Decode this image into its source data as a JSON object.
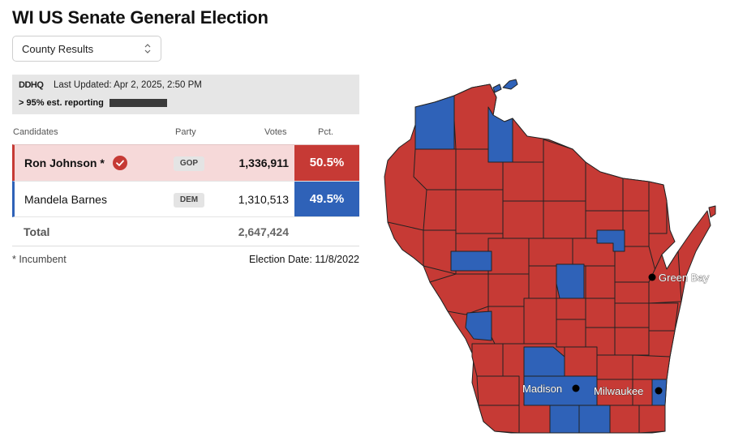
{
  "title": "WI US Senate General Election",
  "view_select": {
    "value": "County Results"
  },
  "banner": {
    "logo": "DDHQ",
    "updated": "Last Updated: Apr 2, 2025, 2:50 PM",
    "reporting": "> 95% est. reporting",
    "reporting_fraction": 0.95
  },
  "table": {
    "headers": {
      "candidates": "Candidates",
      "party": "Party",
      "votes": "Votes",
      "pct": "Pct."
    },
    "rows": [
      {
        "name": "Ron Johnson *",
        "party": "GOP",
        "votes": "1,336,911",
        "pct": "50.5%",
        "winner": true,
        "color": "#c63a35"
      },
      {
        "name": "Mandela Barnes",
        "party": "DEM",
        "votes": "1,310,513",
        "pct": "49.5%",
        "winner": false,
        "color": "#2f62b8"
      }
    ],
    "total_label": "Total",
    "total_votes": "2,647,424"
  },
  "footer": {
    "incumbent_note": "* Incumbent",
    "election_date": "Election Date: 11/8/2022"
  },
  "map": {
    "colors": {
      "gop": "#c63a35",
      "dem": "#2f62b8"
    },
    "cities": [
      {
        "name": "Green Bay"
      },
      {
        "name": "Madison"
      },
      {
        "name": "Milwaukee"
      }
    ]
  }
}
